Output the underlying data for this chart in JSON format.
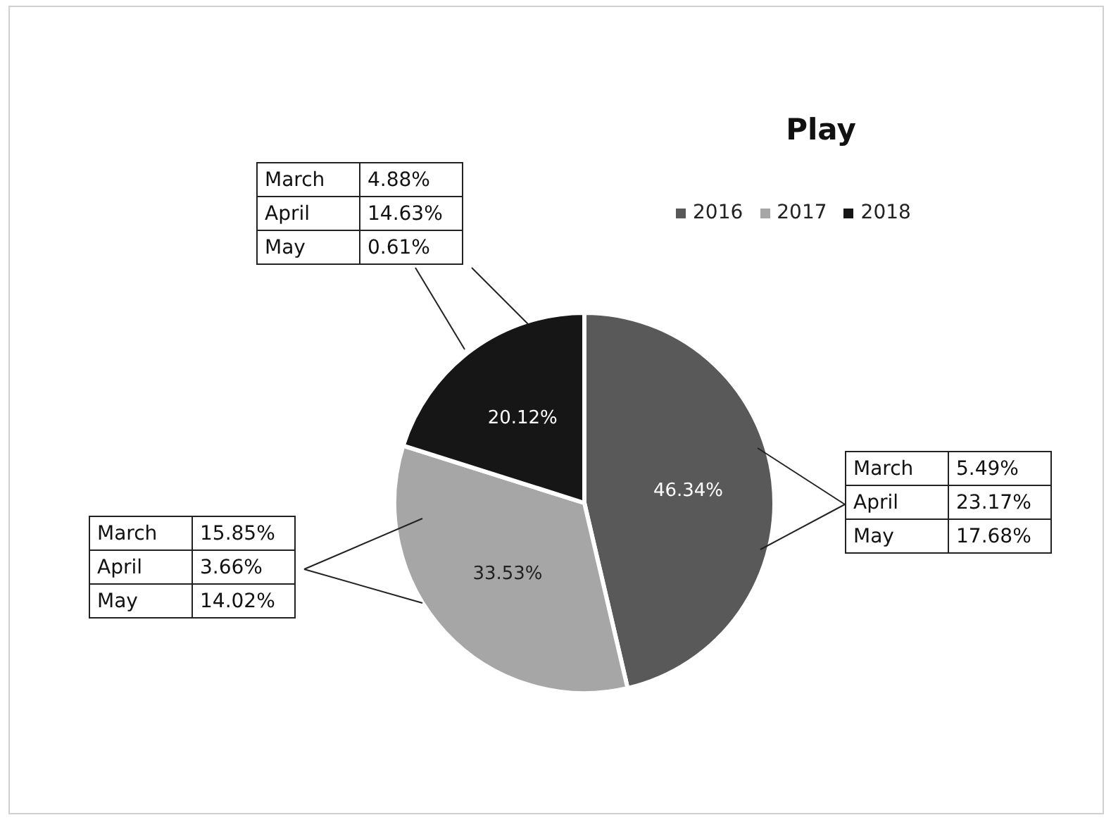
{
  "chart_data": {
    "type": "pie",
    "title": "Play",
    "categories": [
      "2016",
      "2017",
      "2018"
    ],
    "values": [
      46.34,
      33.53,
      20.12
    ],
    "value_labels": [
      "46.34%",
      "33.53%",
      "20.12%"
    ],
    "colors": [
      "#595959",
      "#a6a6a6",
      "#161616"
    ],
    "legend": "top right",
    "annotations": [
      "March",
      "4.88%",
      "April",
      "14.63%",
      "May",
      "0.61%",
      "March",
      "5.49%",
      "April",
      "23.17%",
      "May",
      "17.68%",
      "March",
      "15.85%",
      "April",
      "3.66%",
      "May",
      "14.02%"
    ]
  }
}
